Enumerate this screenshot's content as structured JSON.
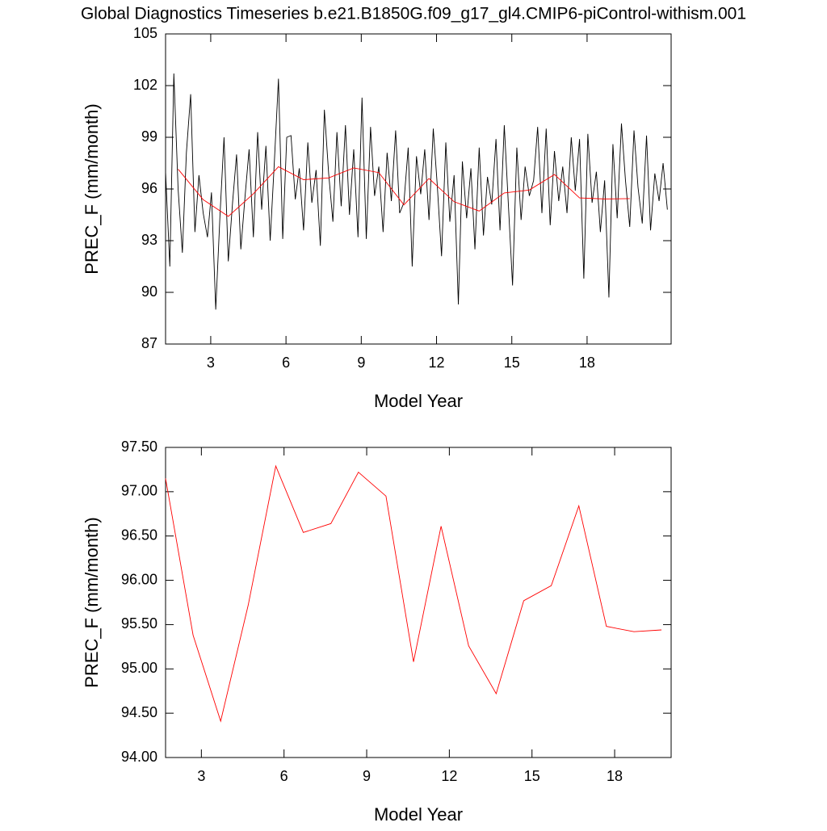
{
  "chart_data": [
    {
      "type": "line",
      "title": "Global Diagnostics Timeseries b.e21.B1850G.f09_g17_gl4.CMIP6-piControl-withism.001",
      "ylabel": "PREC_F (mm/month)",
      "xlabel": "Model Year",
      "xlim": [
        1.2,
        21.35
      ],
      "xticks": [
        3,
        6,
        9,
        12,
        15,
        18
      ],
      "ylim": [
        87,
        105
      ],
      "yticks": [
        87,
        90,
        93,
        96,
        99,
        102,
        105
      ],
      "series": [
        {
          "color": "#000000",
          "x": [
            1.2,
            1.37,
            1.53,
            1.7,
            1.87,
            2.03,
            2.2,
            2.37,
            2.53,
            2.7,
            2.87,
            3.03,
            3.2,
            3.37,
            3.53,
            3.7,
            3.87,
            4.03,
            4.2,
            4.37,
            4.53,
            4.7,
            4.87,
            5.03,
            5.2,
            5.37,
            5.53,
            5.7,
            5.87,
            6.03,
            6.2,
            6.37,
            6.53,
            6.7,
            6.87,
            7.03,
            7.2,
            7.37,
            7.53,
            7.7,
            7.87,
            8.03,
            8.2,
            8.37,
            8.53,
            8.7,
            8.87,
            9.03,
            9.2,
            9.37,
            9.53,
            9.7,
            9.87,
            10.03,
            10.2,
            10.37,
            10.53,
            10.7,
            10.87,
            11.03,
            11.2,
            11.37,
            11.53,
            11.7,
            11.87,
            12.03,
            12.2,
            12.37,
            12.53,
            12.7,
            12.87,
            13.03,
            13.2,
            13.37,
            13.53,
            13.7,
            13.87,
            14.03,
            14.2,
            14.37,
            14.53,
            14.7,
            14.87,
            15.03,
            15.2,
            15.37,
            15.53,
            15.7,
            15.87,
            16.03,
            16.2,
            16.37,
            16.53,
            16.7,
            16.87,
            17.03,
            17.2,
            17.37,
            17.53,
            17.7,
            17.87,
            18.03,
            18.2,
            18.37,
            18.53,
            18.7,
            18.87,
            19.03,
            19.2,
            19.37,
            19.53,
            19.7,
            19.87,
            20.03,
            20.2,
            20.37,
            20.53,
            20.7,
            20.87,
            21.03,
            21.2
          ],
          "values": [
            97,
            91.5,
            102.7,
            96,
            92.3,
            98.1,
            101.5,
            93.5,
            96.8,
            94.6,
            93.2,
            95.8,
            89,
            94.5,
            99,
            91.8,
            95.2,
            98,
            92.5,
            95.6,
            98.3,
            93.2,
            99.3,
            94.8,
            98.5,
            93,
            97.4,
            102.4,
            93.1,
            99,
            99.1,
            95.4,
            97.2,
            93.6,
            98.7,
            95.2,
            97.1,
            92.7,
            100.6,
            96.9,
            94.1,
            99.3,
            95,
            99.7,
            94.5,
            98.3,
            93.2,
            101.3,
            93.1,
            99.6,
            95.6,
            97.3,
            93.5,
            98.1,
            95.3,
            99.4,
            94.6,
            95.2,
            98.4,
            91.5,
            97.9,
            95.7,
            98.3,
            94.2,
            99.5,
            96.2,
            92.1,
            98.7,
            94.1,
            96.8,
            89.3,
            97.6,
            94.3,
            97.2,
            92.5,
            98.4,
            93.3,
            96.7,
            95.1,
            98.9,
            93.6,
            99.7,
            94.9,
            90.4,
            98.4,
            94.2,
            97.3,
            95.6,
            96.5,
            99.6,
            94.6,
            99.5,
            93.9,
            98.2,
            95.3,
            97.3,
            94.6,
            99,
            95.9,
            98.9,
            90.8,
            99.2,
            95.2,
            97,
            93.5,
            96.5,
            89.7,
            98.6,
            94.3,
            99.8,
            96.5,
            93.8,
            99.4,
            96.1,
            94,
            99.1,
            93.6,
            96.9,
            95.3,
            97.5,
            94.8
          ]
        },
        {
          "color": "#ff0000",
          "x": [
            1.7,
            2.7,
            3.7,
            4.7,
            5.7,
            6.7,
            7.7,
            8.7,
            9.7,
            10.7,
            11.7,
            12.7,
            13.7,
            14.7,
            15.7,
            16.7,
            17.7,
            18.7,
            19.7
          ],
          "values": [
            97.15,
            95.38,
            94.41,
            95.72,
            97.29,
            96.54,
            96.64,
            97.22,
            96.95,
            95.08,
            96.61,
            95.26,
            94.72,
            95.77,
            95.94,
            96.84,
            95.48,
            95.42,
            95.44
          ]
        }
      ]
    },
    {
      "type": "line",
      "ylabel": "PREC_F (mm/month)",
      "xlabel": "Model Year",
      "xlim": [
        1.7,
        20.05
      ],
      "xticks": [
        3,
        6,
        9,
        12,
        15,
        18
      ],
      "ylim": [
        94,
        97.5
      ],
      "yticks": [
        {
          "value": 94,
          "label": "94.00"
        },
        {
          "value": 94.5,
          "label": "94.50"
        },
        {
          "value": 95,
          "label": "95.00"
        },
        {
          "value": 95.5,
          "label": "95.50"
        },
        {
          "value": 96,
          "label": "96.00"
        },
        {
          "value": 96.5,
          "label": "96.50"
        },
        {
          "value": 97,
          "label": "97.00"
        },
        {
          "value": 97.5,
          "label": "97.50"
        }
      ],
      "series": [
        {
          "color": "#ff0000",
          "x": [
            1.7,
            2.7,
            3.7,
            4.7,
            5.7,
            6.7,
            7.7,
            8.7,
            9.7,
            10.7,
            11.7,
            12.7,
            13.7,
            14.7,
            15.7,
            16.7,
            17.7,
            18.7,
            19.7
          ],
          "values": [
            97.15,
            95.38,
            94.41,
            95.72,
            97.29,
            96.54,
            96.64,
            97.22,
            96.95,
            95.08,
            96.61,
            95.26,
            94.72,
            95.77,
            95.94,
            96.84,
            95.48,
            95.42,
            95.44
          ]
        }
      ]
    }
  ]
}
